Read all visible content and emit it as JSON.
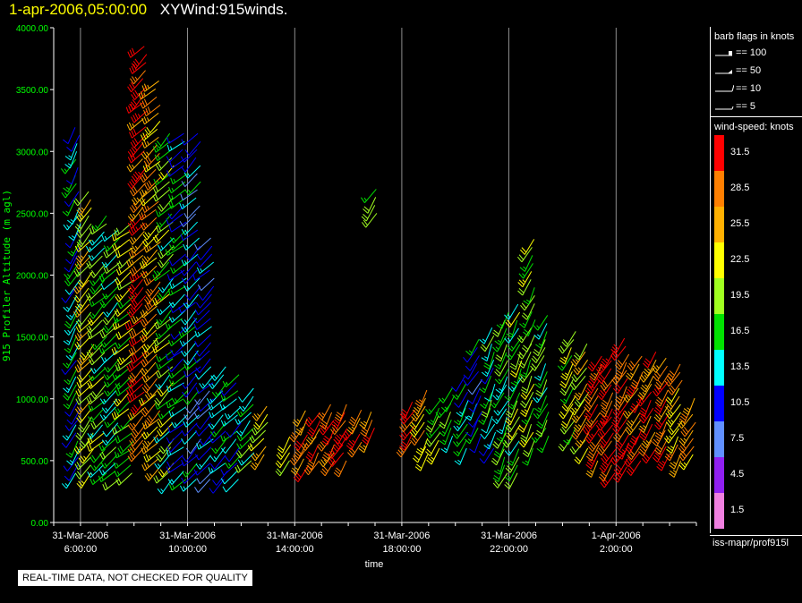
{
  "header": {
    "timestamp": "1-apr-2006,05:00:00",
    "product": "XYWind:915winds."
  },
  "chart_data": {
    "type": "scatter",
    "title": "1-apr-2006,05:00:00  XYWind:915winds.",
    "xlabel": "time",
    "ylabel": "915 Profiler Altitude (m agl)",
    "ylim": [
      0,
      4000
    ],
    "xlim_hours": [
      5.0,
      29.0
    ],
    "grid": "vertical lines at labeled times",
    "y_ticks": [
      "0.00",
      "500.00",
      "1000.00",
      "1500.00",
      "2000.00",
      "2500.00",
      "3000.00",
      "3500.00",
      "4000.00"
    ],
    "x_ticks": [
      {
        "date": "31-Mar-2006",
        "time": "6:00:00",
        "hour": 6
      },
      {
        "date": "31-Mar-2006",
        "time": "10:00:00",
        "hour": 10
      },
      {
        "date": "31-Mar-2006",
        "time": "14:00:00",
        "hour": 14
      },
      {
        "date": "31-Mar-2006",
        "time": "18:00:00",
        "hour": 18
      },
      {
        "date": "31-Mar-2006",
        "time": "22:00:00",
        "hour": 22
      },
      {
        "date": "1-Apr-2006",
        "time": "2:00:00",
        "hour": 26
      }
    ],
    "speed_classes": [
      {
        "label": "31.5",
        "color": "#ff0000"
      },
      {
        "label": "28.5",
        "color": "#ff7f00"
      },
      {
        "label": "25.5",
        "color": "#ffb000"
      },
      {
        "label": "22.5",
        "color": "#ffff00"
      },
      {
        "label": "19.5",
        "color": "#a0ff20"
      },
      {
        "label": "16.5",
        "color": "#00e000"
      },
      {
        "label": "13.5",
        "color": "#00ffff"
      },
      {
        "label": "10.5",
        "color": "#0000ff"
      },
      {
        "label": "7.5",
        "color": "#6090ff"
      },
      {
        "label": "4.5",
        "color": "#9020f0"
      },
      {
        "label": "1.5",
        "color": "#f080e0"
      }
    ],
    "profiles": [
      {
        "hour": 5.9,
        "h0": 400,
        "h1": 3200,
        "speed": 14,
        "dir": 210
      },
      {
        "hour": 6.4,
        "h0": 400,
        "h1": 2700,
        "speed": 22,
        "dir": 220
      },
      {
        "hour": 6.9,
        "h0": 400,
        "h1": 2500,
        "speed": 18,
        "dir": 225
      },
      {
        "hour": 7.4,
        "h0": 350,
        "h1": 2400,
        "speed": 16,
        "dir": 225
      },
      {
        "hour": 7.9,
        "h0": 400,
        "h1": 2450,
        "speed": 20,
        "dir": 230
      },
      {
        "hour": 8.4,
        "h0": 600,
        "h1": 3900,
        "speed": 30,
        "dir": 225
      },
      {
        "hour": 8.9,
        "h0": 450,
        "h1": 3600,
        "speed": 26,
        "dir": 225
      },
      {
        "hour": 9.4,
        "h0": 350,
        "h1": 3200,
        "speed": 18,
        "dir": 225
      },
      {
        "hour": 9.9,
        "h0": 350,
        "h1": 3200,
        "speed": 14,
        "dir": 230
      },
      {
        "hour": 10.4,
        "h0": 350,
        "h1": 3200,
        "speed": 12,
        "dir": 225
      },
      {
        "hour": 10.9,
        "h0": 350,
        "h1": 2300,
        "speed": 11,
        "dir": 225
      },
      {
        "hour": 11.4,
        "h0": 350,
        "h1": 1300,
        "speed": 13,
        "dir": 225
      },
      {
        "hour": 11.9,
        "h0": 350,
        "h1": 1200,
        "speed": 14,
        "dir": 225
      },
      {
        "hour": 12.4,
        "h0": 500,
        "h1": 1100,
        "speed": 16,
        "dir": 220
      },
      {
        "hour": 12.9,
        "h0": 550,
        "h1": 1000,
        "speed": 22,
        "dir": 220
      },
      {
        "hour": 13.9,
        "h0": 500,
        "h1": 700,
        "speed": 22,
        "dir": 210
      },
      {
        "hour": 14.4,
        "h0": 450,
        "h1": 950,
        "speed": 29,
        "dir": 210
      },
      {
        "hour": 14.9,
        "h0": 500,
        "h1": 900,
        "speed": 28,
        "dir": 210
      },
      {
        "hour": 15.4,
        "h0": 500,
        "h1": 1000,
        "speed": 30,
        "dir": 210
      },
      {
        "hour": 15.9,
        "h0": 500,
        "h1": 1000,
        "speed": 31,
        "dir": 210
      },
      {
        "hour": 16.4,
        "h0": 650,
        "h1": 950,
        "speed": 30,
        "dir": 210
      },
      {
        "hour": 16.9,
        "h0": 700,
        "h1": 900,
        "speed": 28,
        "dir": 210
      },
      {
        "hour": 17.0,
        "h0": 2500,
        "h1": 2700,
        "speed": 17,
        "dir": 215
      },
      {
        "hour": 18.4,
        "h0": 650,
        "h1": 1000,
        "speed": 30,
        "dir": 210
      },
      {
        "hour": 18.9,
        "h0": 550,
        "h1": 1100,
        "speed": 26,
        "dir": 210
      },
      {
        "hour": 19.4,
        "h0": 600,
        "h1": 1050,
        "speed": 20,
        "dir": 210
      },
      {
        "hour": 19.9,
        "h0": 700,
        "h1": 1100,
        "speed": 17,
        "dir": 210
      },
      {
        "hour": 20.4,
        "h0": 600,
        "h1": 1200,
        "speed": 14,
        "dir": 210
      },
      {
        "hour": 20.9,
        "h0": 700,
        "h1": 1500,
        "speed": 12,
        "dir": 210
      },
      {
        "hour": 21.4,
        "h0": 600,
        "h1": 1600,
        "speed": 15,
        "dir": 205
      },
      {
        "hour": 21.9,
        "h0": 400,
        "h1": 1700,
        "speed": 16,
        "dir": 205
      },
      {
        "hour": 22.4,
        "h0": 400,
        "h1": 1800,
        "speed": 18,
        "dir": 205
      },
      {
        "hour": 22.9,
        "h0": 600,
        "h1": 2300,
        "speed": 19,
        "dir": 205
      },
      {
        "hour": 23.4,
        "h0": 700,
        "h1": 1700,
        "speed": 17,
        "dir": 205
      },
      {
        "hour": 24.4,
        "h0": 700,
        "h1": 1600,
        "speed": 20,
        "dir": 210
      },
      {
        "hour": 24.9,
        "h0": 600,
        "h1": 1500,
        "speed": 24,
        "dir": 210
      },
      {
        "hour": 25.4,
        "h0": 500,
        "h1": 1400,
        "speed": 30,
        "dir": 210
      },
      {
        "hour": 25.9,
        "h0": 400,
        "h1": 1400,
        "speed": 32,
        "dir": 210
      },
      {
        "hour": 26.4,
        "h0": 450,
        "h1": 1500,
        "speed": 31,
        "dir": 210
      },
      {
        "hour": 26.9,
        "h0": 500,
        "h1": 1400,
        "speed": 29,
        "dir": 210
      },
      {
        "hour": 27.4,
        "h0": 600,
        "h1": 1400,
        "speed": 28,
        "dir": 210
      },
      {
        "hour": 27.9,
        "h0": 550,
        "h1": 1350,
        "speed": 30,
        "dir": 210
      },
      {
        "hour": 28.4,
        "h0": 500,
        "h1": 1300,
        "speed": 26,
        "dir": 210
      },
      {
        "hour": 28.9,
        "h0": 550,
        "h1": 1050,
        "speed": 27,
        "dir": 210
      }
    ]
  },
  "legend": {
    "barb_title": "barb flags in knots",
    "barb_items": [
      {
        "label": "== 100",
        "kind": "flag"
      },
      {
        "label": "== 50",
        "kind": "pennant"
      },
      {
        "label": "== 10",
        "kind": "full"
      },
      {
        "label": "== 5",
        "kind": "half"
      }
    ],
    "speed_title": "wind-speed: knots"
  },
  "footer": {
    "source": "iss-mapr/prof915l",
    "quality_note": "REAL-TIME DATA, NOT CHECKED FOR QUALITY"
  }
}
